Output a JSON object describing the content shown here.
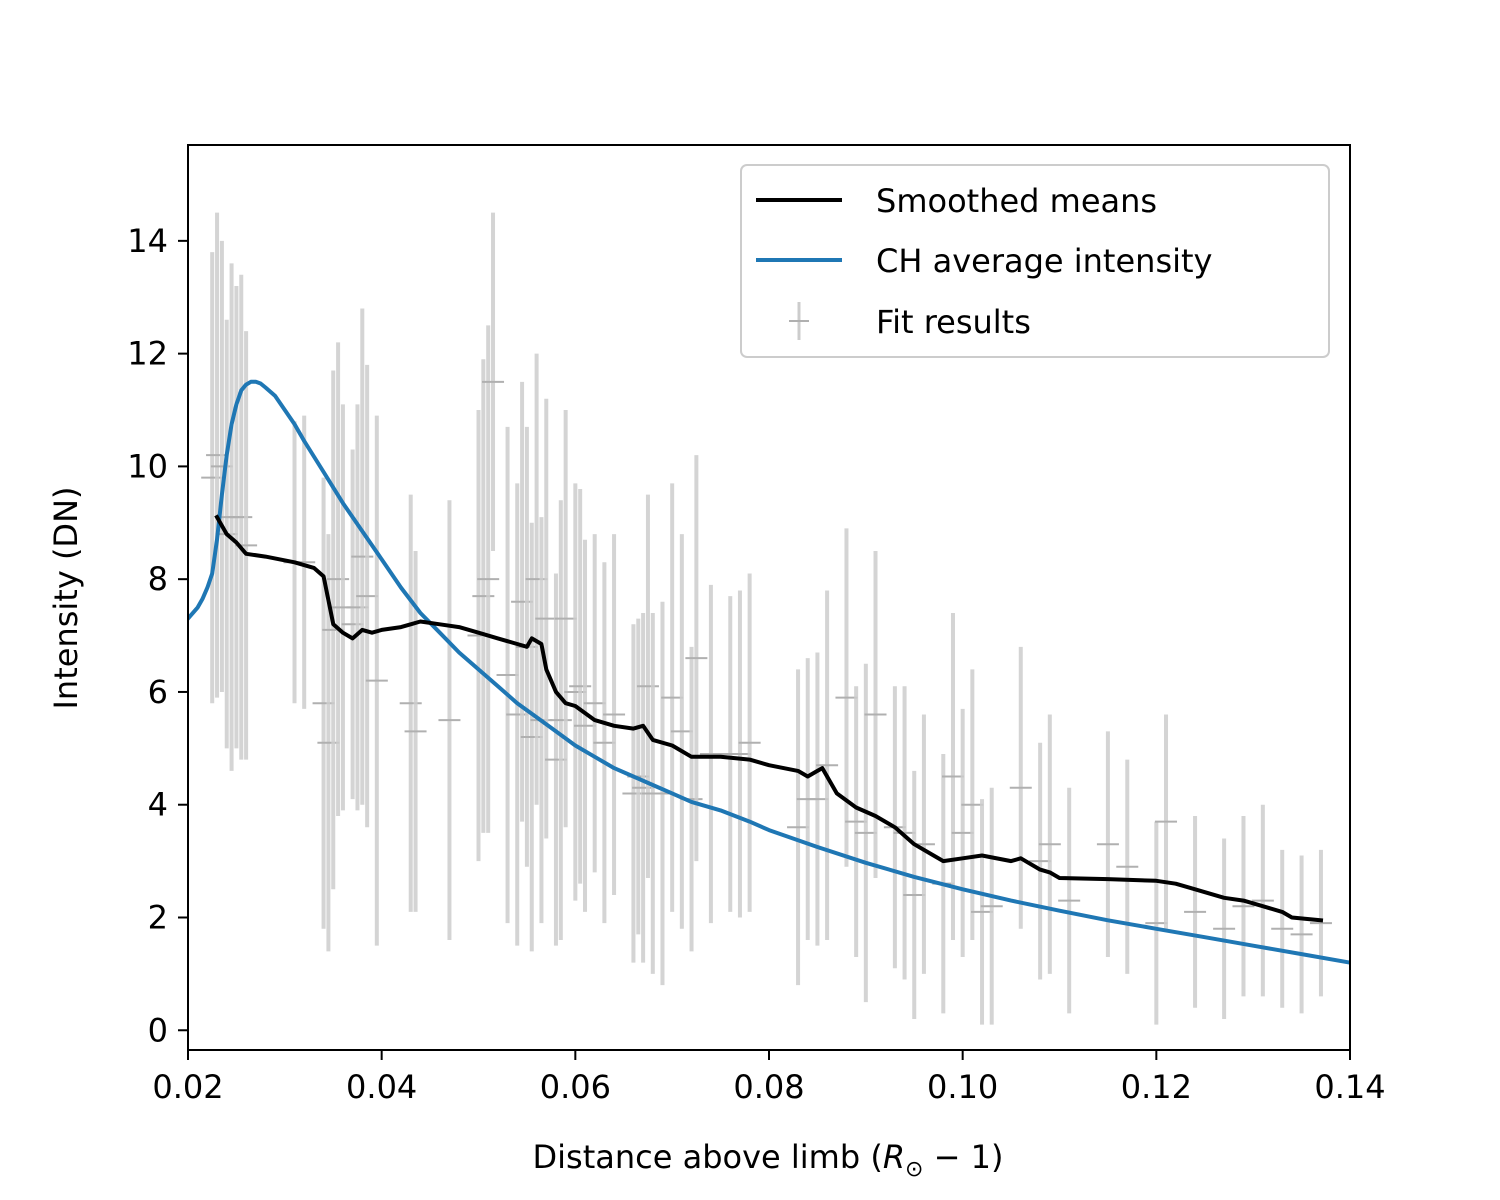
{
  "chart_data": {
    "type": "line",
    "title": "",
    "xlabel_main": "Distance above limb (",
    "xlabel_var": "R",
    "xlabel_sub": "⊙",
    "xlabel_tail": " − 1)",
    "ylabel": "Intensity (DN)",
    "xlim": [
      0.02,
      0.14
    ],
    "ylim": [
      -0.35,
      15.7
    ],
    "xticks": [
      0.02,
      0.04,
      0.06,
      0.08,
      0.1,
      0.12,
      0.14
    ],
    "xtick_labels": [
      "0.02",
      "0.04",
      "0.06",
      "0.08",
      "0.10",
      "0.12",
      "0.14"
    ],
    "yticks": [
      0,
      2,
      4,
      6,
      8,
      10,
      12,
      14
    ],
    "ytick_labels": [
      "0",
      "2",
      "4",
      "6",
      "8",
      "10",
      "12",
      "14"
    ],
    "grid": false,
    "legend_position": "top-right",
    "series": [
      {
        "name": "Smoothed means",
        "kind": "line",
        "color": "#000000",
        "x": [
          0.023,
          0.024,
          0.025,
          0.026,
          0.028,
          0.031,
          0.033,
          0.034,
          0.035,
          0.036,
          0.037,
          0.038,
          0.039,
          0.04,
          0.042,
          0.043,
          0.044,
          0.046,
          0.048,
          0.05,
          0.052,
          0.054,
          0.055,
          0.0555,
          0.0565,
          0.057,
          0.058,
          0.059,
          0.06,
          0.062,
          0.064,
          0.066,
          0.067,
          0.068,
          0.07,
          0.072,
          0.075,
          0.078,
          0.08,
          0.083,
          0.084,
          0.085,
          0.0855,
          0.087,
          0.089,
          0.091,
          0.093,
          0.095,
          0.097,
          0.098,
          0.1,
          0.102,
          0.105,
          0.106,
          0.108,
          0.109,
          0.11,
          0.115,
          0.12,
          0.122,
          0.124,
          0.127,
          0.129,
          0.131,
          0.133,
          0.134,
          0.137
        ],
        "y": [
          9.1,
          8.8,
          8.65,
          8.45,
          8.4,
          8.3,
          8.2,
          8.05,
          7.2,
          7.05,
          6.95,
          7.1,
          7.05,
          7.1,
          7.15,
          7.2,
          7.25,
          7.2,
          7.15,
          7.05,
          6.95,
          6.85,
          6.8,
          6.95,
          6.85,
          6.4,
          6.0,
          5.8,
          5.75,
          5.5,
          5.4,
          5.35,
          5.4,
          5.15,
          5.05,
          4.85,
          4.85,
          4.8,
          4.7,
          4.6,
          4.5,
          4.6,
          4.65,
          4.2,
          3.95,
          3.8,
          3.6,
          3.3,
          3.1,
          3.0,
          3.05,
          3.1,
          3.0,
          3.05,
          2.85,
          2.8,
          2.7,
          2.68,
          2.65,
          2.6,
          2.5,
          2.35,
          2.3,
          2.2,
          2.1,
          2.0,
          1.95
        ]
      },
      {
        "name": "CH average intensity",
        "kind": "line",
        "color": "#1f77b4",
        "x": [
          0.02,
          0.021,
          0.0215,
          0.022,
          0.0225,
          0.023,
          0.0235,
          0.024,
          0.0245,
          0.025,
          0.0255,
          0.026,
          0.0265,
          0.027,
          0.0275,
          0.028,
          0.029,
          0.03,
          0.031,
          0.032,
          0.034,
          0.036,
          0.038,
          0.04,
          0.042,
          0.044,
          0.046,
          0.048,
          0.05,
          0.052,
          0.054,
          0.056,
          0.058,
          0.06,
          0.062,
          0.064,
          0.066,
          0.068,
          0.07,
          0.072,
          0.075,
          0.078,
          0.08,
          0.085,
          0.09,
          0.095,
          0.1,
          0.105,
          0.11,
          0.115,
          0.12,
          0.125,
          0.13,
          0.135,
          0.14
        ],
        "y": [
          7.3,
          7.5,
          7.65,
          7.85,
          8.1,
          8.7,
          9.5,
          10.2,
          10.75,
          11.1,
          11.35,
          11.45,
          11.5,
          11.5,
          11.47,
          11.4,
          11.25,
          11.0,
          10.75,
          10.45,
          9.9,
          9.35,
          8.85,
          8.35,
          7.85,
          7.4,
          7.05,
          6.7,
          6.4,
          6.1,
          5.8,
          5.55,
          5.3,
          5.05,
          4.85,
          4.65,
          4.5,
          4.35,
          4.2,
          4.05,
          3.9,
          3.7,
          3.55,
          3.25,
          2.97,
          2.72,
          2.5,
          2.3,
          2.12,
          1.95,
          1.8,
          1.65,
          1.5,
          1.35,
          1.2
        ]
      },
      {
        "name": "Fit results",
        "kind": "errorbar",
        "color": "#bbbbbb",
        "x": [
          0.0225,
          0.023,
          0.0235,
          0.024,
          0.0245,
          0.025,
          0.0255,
          0.026,
          0.031,
          0.032,
          0.034,
          0.0345,
          0.035,
          0.0355,
          0.036,
          0.037,
          0.0375,
          0.038,
          0.0385,
          0.0395,
          0.043,
          0.0435,
          0.047,
          0.05,
          0.0505,
          0.051,
          0.0515,
          0.053,
          0.054,
          0.0545,
          0.055,
          0.0555,
          0.056,
          0.0565,
          0.057,
          0.058,
          0.0585,
          0.059,
          0.06,
          0.0605,
          0.061,
          0.062,
          0.063,
          0.064,
          0.066,
          0.0665,
          0.067,
          0.0675,
          0.068,
          0.069,
          0.07,
          0.071,
          0.072,
          0.0725,
          0.074,
          0.076,
          0.077,
          0.078,
          0.083,
          0.084,
          0.085,
          0.086,
          0.088,
          0.089,
          0.09,
          0.091,
          0.093,
          0.094,
          0.095,
          0.096,
          0.098,
          0.099,
          0.1,
          0.101,
          0.102,
          0.103,
          0.106,
          0.108,
          0.109,
          0.111,
          0.115,
          0.117,
          0.12,
          0.121,
          0.124,
          0.127,
          0.129,
          0.131,
          0.133,
          0.135,
          0.137
        ],
        "y": [
          9.8,
          10.2,
          10.0,
          8.8,
          9.1,
          9.1,
          9.1,
          8.6,
          8.3,
          8.3,
          5.8,
          5.1,
          7.1,
          8.0,
          7.5,
          7.2,
          7.5,
          8.4,
          7.7,
          6.2,
          5.8,
          5.3,
          5.5,
          7.0,
          7.7,
          8.0,
          11.5,
          6.3,
          5.6,
          7.6,
          6.8,
          5.2,
          8.0,
          5.5,
          7.3,
          4.8,
          5.5,
          7.3,
          6.0,
          6.1,
          5.4,
          5.8,
          5.1,
          5.6,
          4.2,
          4.5,
          4.3,
          6.1,
          4.2,
          4.2,
          5.9,
          5.3,
          4.1,
          6.6,
          4.9,
          4.9,
          4.9,
          5.1,
          3.6,
          4.1,
          4.1,
          4.7,
          5.9,
          3.7,
          3.5,
          5.6,
          3.6,
          3.5,
          2.4,
          3.3,
          2.6,
          4.5,
          3.5,
          4.0,
          2.1,
          2.2,
          4.3,
          3.0,
          3.3,
          2.3,
          3.3,
          2.9,
          1.9,
          3.7,
          2.1,
          1.8,
          2.2,
          2.3,
          1.8,
          1.7,
          1.9
        ],
        "yerr": [
          4.0,
          4.3,
          4.0,
          3.8,
          4.5,
          4.1,
          4.3,
          3.8,
          2.5,
          2.6,
          4.0,
          3.7,
          4.6,
          4.2,
          3.6,
          3.1,
          3.6,
          4.4,
          4.1,
          4.7,
          3.7,
          3.2,
          3.9,
          4.0,
          4.2,
          4.5,
          3.0,
          4.4,
          4.1,
          3.9,
          3.9,
          3.8,
          4.0,
          3.6,
          3.9,
          3.3,
          3.9,
          3.7,
          3.7,
          3.5,
          3.3,
          3.0,
          3.2,
          3.2,
          3.0,
          2.8,
          3.1,
          3.4,
          3.2,
          3.4,
          3.8,
          3.5,
          2.7,
          3.6,
          3.0,
          2.8,
          2.9,
          3.0,
          2.8,
          2.5,
          2.6,
          3.1,
          3.0,
          2.4,
          3.0,
          2.9,
          2.5,
          2.6,
          2.2,
          2.3,
          2.3,
          2.9,
          2.2,
          2.4,
          2.0,
          2.1,
          2.5,
          2.1,
          2.3,
          2.0,
          2.0,
          1.9,
          1.8,
          1.9,
          1.7,
          1.6,
          1.6,
          1.7,
          1.4,
          1.4,
          1.3
        ]
      }
    ]
  }
}
